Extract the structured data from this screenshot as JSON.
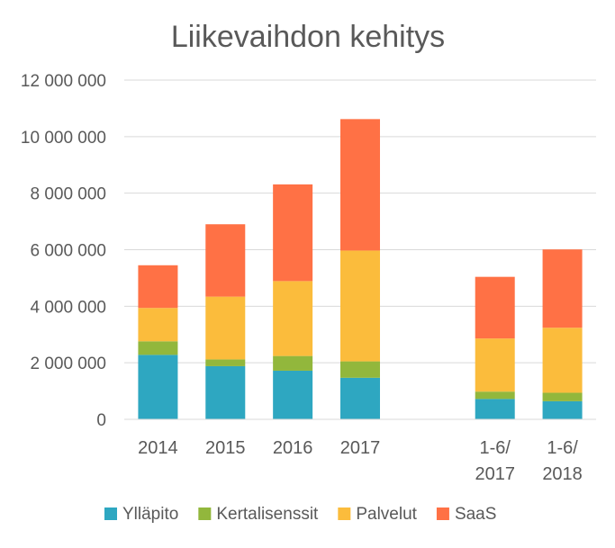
{
  "chart_data": {
    "type": "bar",
    "stacked": true,
    "title": "Liikevaihdon kehitys",
    "xlabel": "",
    "ylabel": "",
    "categories": [
      "2014",
      "2015",
      "2016",
      "2017",
      "",
      "1-6/\n2017",
      "1-6/\n2018"
    ],
    "yticks": [
      "0",
      "2 000 000",
      "4 000 000",
      "6 000 000",
      "8 000 000",
      "10 000 000",
      "12 000 000"
    ],
    "ylim": [
      0,
      12000000
    ],
    "grid": true,
    "legend_position": "bottom",
    "series": [
      {
        "name": "Ylläpito",
        "color": "#2ea7c1",
        "values": [
          2280000,
          1880000,
          1720000,
          1470000,
          null,
          720000,
          640000
        ]
      },
      {
        "name": "Kertalisenssit",
        "color": "#92b73c",
        "values": [
          480000,
          240000,
          520000,
          580000,
          null,
          260000,
          300000
        ]
      },
      {
        "name": "Palvelut",
        "color": "#fbbc3c",
        "values": [
          1180000,
          2220000,
          2650000,
          3920000,
          null,
          1880000,
          2300000
        ]
      },
      {
        "name": "SaaS",
        "color": "#ff7145",
        "values": [
          1510000,
          2560000,
          3420000,
          4650000,
          null,
          2180000,
          2770000
        ]
      }
    ]
  }
}
